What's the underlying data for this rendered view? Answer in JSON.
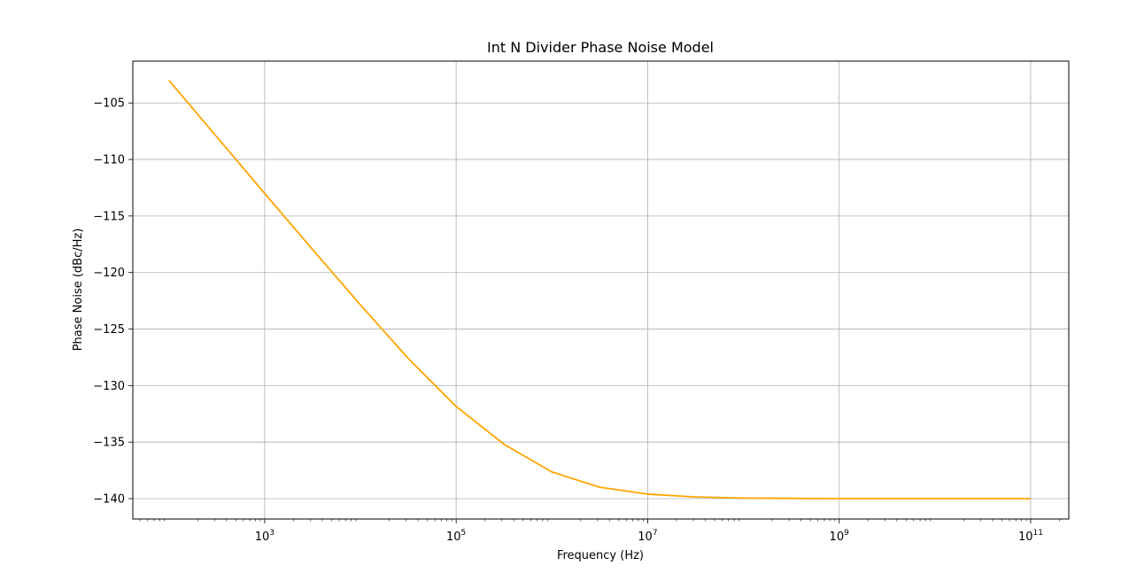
{
  "chart_data": {
    "type": "line",
    "title": "Int N Divider Phase Noise Model",
    "xlabel": "Frequency (Hz)",
    "ylabel": "Phase Noise (dBc/Hz)",
    "x_scale": "log",
    "xlim": [
      42,
      250000000000
    ],
    "ylim": [
      -141.8,
      -101.3
    ],
    "grid": true,
    "color": "#ffa500",
    "x_ticks": [
      {
        "value": 1000,
        "base": "10",
        "exp": "3"
      },
      {
        "value": 100000,
        "base": "10",
        "exp": "5"
      },
      {
        "value": 10000000,
        "base": "10",
        "exp": "7"
      },
      {
        "value": 1000000000,
        "base": "10",
        "exp": "9"
      },
      {
        "value": 100000000000,
        "base": "10",
        "exp": "11"
      }
    ],
    "y_ticks": [
      {
        "value": -105,
        "label": "−105"
      },
      {
        "value": -110,
        "label": "−110"
      },
      {
        "value": -115,
        "label": "−115"
      },
      {
        "value": -120,
        "label": "−120"
      },
      {
        "value": -125,
        "label": "−125"
      },
      {
        "value": -130,
        "label": "−130"
      },
      {
        "value": -135,
        "label": "−135"
      },
      {
        "value": -140,
        "label": "−140"
      }
    ],
    "series": [
      {
        "x": [
          100,
          316.2,
          1000,
          3162,
          10000,
          31623,
          100000,
          316228,
          1000000,
          3162278,
          10000000,
          31622777,
          100000000,
          1000000000,
          10000000000,
          100000000000
        ],
        "y": [
          -103.0,
          -108.0,
          -113.0,
          -117.96,
          -122.86,
          -127.6,
          -131.85,
          -135.19,
          -137.64,
          -138.99,
          -139.6,
          -139.85,
          -139.95,
          -140.0,
          -140.0,
          -140.0
        ]
      }
    ]
  }
}
